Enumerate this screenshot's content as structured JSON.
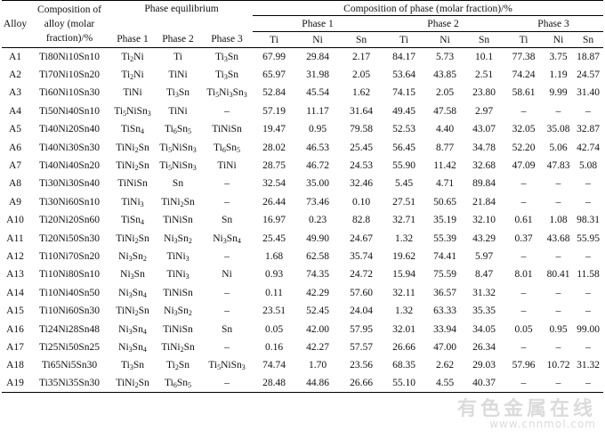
{
  "headers": {
    "alloy": "Alloy",
    "composition": "Composition of alloy (molar fraction)/%",
    "phase_equilibrium": "Phase equilibrium",
    "composition_of_phase": "Composition of phase (molar fraction)/%",
    "phase1": "Phase 1",
    "phase2": "Phase 2",
    "phase3": "Phase 3",
    "ti": "Ti",
    "ni": "Ni",
    "sn": "Sn"
  },
  "rows": [
    {
      "alloy": "A1",
      "comp": "Ti80Ni10Sn10",
      "p1": "Ti_2Ni",
      "p2": "Ti",
      "p3": "Ti_3Sn",
      "v": [
        "67.99",
        "29.84",
        "2.17",
        "84.17",
        "5.73",
        "10.1",
        "77.38",
        "3.75",
        "18.87"
      ]
    },
    {
      "alloy": "A2",
      "comp": "Ti70Ni10Sn20",
      "p1": "Ti_2Ni",
      "p2": "TiNi",
      "p3": "Ti_3Sn",
      "v": [
        "65.97",
        "31.98",
        "2.05",
        "53.64",
        "43.85",
        "2.51",
        "74.24",
        "1.19",
        "24.57"
      ]
    },
    {
      "alloy": "A3",
      "comp": "Ti60Ni10Sn30",
      "p1": "TiNi",
      "p2": "Ti_3Sn",
      "p3": "Ti_5Ni_3Sn_3",
      "v": [
        "52.84",
        "45.54",
        "1.62",
        "74.15",
        "2.05",
        "23.80",
        "58.61",
        "9.99",
        "31.40"
      ]
    },
    {
      "alloy": "A4",
      "comp": "Ti50Ni40Sn10",
      "p1": "Ti_5NiSn_3",
      "p2": "TiNi",
      "p3": "–",
      "v": [
        "57.19",
        "11.17",
        "31.64",
        "49.45",
        "47.58",
        "2.97",
        "–",
        "–",
        "–"
      ]
    },
    {
      "alloy": "A5",
      "comp": "Ti40Ni20Sn40",
      "p1": "TiSn_4",
      "p2": "Ti_6Sn_5",
      "p3": "TiNiSn",
      "v": [
        "19.47",
        "0.95",
        "79.58",
        "52.53",
        "4.40",
        "43.07",
        "32.05",
        "35.08",
        "32.87"
      ]
    },
    {
      "alloy": "A6",
      "comp": "Ti40Ni30Sn30",
      "p1": "TiNi_2Sn",
      "p2": "Ti_5NiSn_3",
      "p3": "Ti_6Sn_5",
      "v": [
        "28.02",
        "46.53",
        "25.45",
        "56.45",
        "8.77",
        "34.78",
        "52.20",
        "5.06",
        "42.74"
      ]
    },
    {
      "alloy": "A7",
      "comp": "Ti40Ni40Sn20",
      "p1": "TiNi_2Sn",
      "p2": "Ti_5NiSn_3",
      "p3": "TiNi",
      "v": [
        "28.75",
        "46.72",
        "24.53",
        "55.90",
        "11.42",
        "32.68",
        "47.09",
        "47.83",
        "5.08"
      ]
    },
    {
      "alloy": "A8",
      "comp": "Ti30Ni30Sn40",
      "p1": "TiNiSn",
      "p2": "Sn",
      "p3": "–",
      "v": [
        "32.54",
        "35.00",
        "32.46",
        "5.45",
        "4.71",
        "89.84",
        "–",
        "–",
        "–"
      ]
    },
    {
      "alloy": "A9",
      "comp": "Ti30Ni60Sn10",
      "p1": "TiNi_3",
      "p2": "TiNi_2Sn",
      "p3": "–",
      "v": [
        "26.44",
        "73.46",
        "0.10",
        "27.51",
        "50.65",
        "21.84",
        "–",
        "–",
        "–"
      ]
    },
    {
      "alloy": "A10",
      "comp": "Ti20Ni20Sn60",
      "p1": "TiSn_4",
      "p2": "TiNiSn",
      "p3": "Sn",
      "v": [
        "16.97",
        "0.23",
        "82.8",
        "32.71",
        "35.19",
        "32.10",
        "0.61",
        "1.08",
        "98.31"
      ]
    },
    {
      "alloy": "A11",
      "comp": "Ti20Ni50Sn30",
      "p1": "TiNi_2Sn",
      "p2": "Ni_3Sn_2",
      "p3": "Ni_3Sn_4",
      "v": [
        "25.45",
        "49.90",
        "24.67",
        "1.32",
        "55.39",
        "43.29",
        "0.37",
        "43.68",
        "55.95"
      ]
    },
    {
      "alloy": "A12",
      "comp": "Ti10Ni70Sn20",
      "p1": "Ni_3Sn_2",
      "p2": "TiNi_3",
      "p3": "–",
      "v": [
        "1.68",
        "62.58",
        "35.74",
        "19.62",
        "74.41",
        "5.97",
        "–",
        "–",
        "–"
      ]
    },
    {
      "alloy": "A13",
      "comp": "Ti10Ni80Sn10",
      "p1": "Ni_3Sn",
      "p2": "TiNi_3",
      "p3": "Ni",
      "v": [
        "0.93",
        "74.35",
        "24.72",
        "15.94",
        "75.59",
        "8.47",
        "8.01",
        "80.41",
        "11.58"
      ]
    },
    {
      "alloy": "A14",
      "comp": "Ti10Ni40Sn50",
      "p1": "Ni_3Sn_4",
      "p2": "TiNiSn",
      "p3": "–",
      "v": [
        "0.11",
        "42.29",
        "57.60",
        "32.11",
        "36.57",
        "31.32",
        "–",
        "–",
        "–"
      ]
    },
    {
      "alloy": "A15",
      "comp": "Ti10Ni60Sn30",
      "p1": "TiNi_2Sn",
      "p2": "Ni_3Sn_2",
      "p3": "–",
      "v": [
        "23.51",
        "52.45",
        "24.04",
        "1.32",
        "63.33",
        "35.35",
        "–",
        "–",
        "–"
      ]
    },
    {
      "alloy": "A16",
      "comp": "Ti24Ni28Sn48",
      "p1": "Ni_3Sn_4",
      "p2": "TiNiSn",
      "p3": "Sn",
      "v": [
        "0.05",
        "42.00",
        "57.95",
        "32.01",
        "33.94",
        "34.05",
        "0.05",
        "0.95",
        "99.00"
      ]
    },
    {
      "alloy": "A17",
      "comp": "Ti25Ni50Sn25",
      "p1": "Ni_3Sn_4",
      "p2": "TiNi_2Sn",
      "p3": "–",
      "v": [
        "0.16",
        "42.27",
        "57.57",
        "26.66",
        "47.00",
        "26.34",
        "–",
        "–",
        "–"
      ]
    },
    {
      "alloy": "A18",
      "comp": "Ti65Ni5Sn30",
      "p1": "Ti_3Sn",
      "p2": "Ti_2Sn",
      "p3": "Ti_5NiSn_3",
      "v": [
        "74.74",
        "1.70",
        "23.56",
        "68.35",
        "2.62",
        "29.03",
        "57.96",
        "10.72",
        "31.32"
      ]
    },
    {
      "alloy": "A19",
      "comp": "Ti35Ni35Sn30",
      "p1": "TiNi_2Sn",
      "p2": "Ti_6Sn_5",
      "p3": "–",
      "v": [
        "28.48",
        "44.86",
        "26.66",
        "55.10",
        "4.55",
        "40.37",
        "–",
        "–",
        "–"
      ]
    }
  ],
  "watermark": {
    "line1": "有色金属在线",
    "line2": "www.cnnmol.com"
  }
}
